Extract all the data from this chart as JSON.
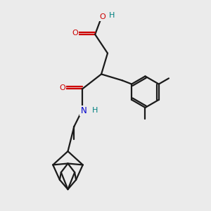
{
  "background_color": "#ebebeb",
  "bond_color": "#1a1a1a",
  "oxygen_color": "#cc0000",
  "nitrogen_color": "#0000cc",
  "hydrogen_color": "#008080",
  "line_width": 1.6,
  "figsize": [
    3.0,
    3.0
  ],
  "dpi": 100,
  "xlim": [
    0,
    10
  ],
  "ylim": [
    0,
    10
  ]
}
